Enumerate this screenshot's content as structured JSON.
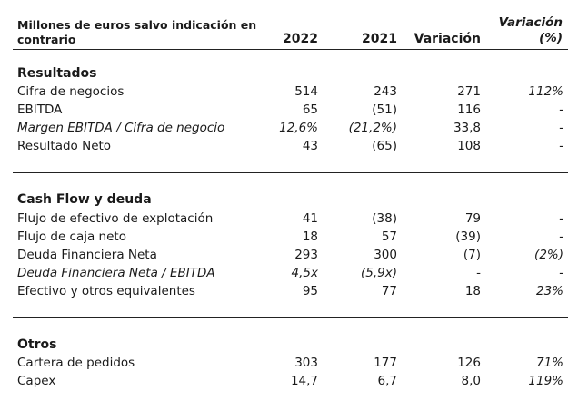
{
  "header": {
    "label_line1": "Millones de euros salvo indicación en",
    "label_line2": "contrario",
    "col_2022": "2022",
    "col_2021": "2021",
    "col_variacion": "Variación",
    "col_variacion_pct_line1": "Variación",
    "col_variacion_pct_line2": "(%)"
  },
  "sections": [
    {
      "title": "Resultados",
      "rows": [
        {
          "label": "Cifra de negocios",
          "v2022": "514",
          "v2021": "243",
          "var": "271",
          "pct": "112%",
          "italic": false
        },
        {
          "label": "EBITDA",
          "v2022": "65",
          "v2021": "(51)",
          "var": "116",
          "pct": "-",
          "italic": false
        },
        {
          "label": "Margen EBITDA / Cifra de negocio",
          "v2022": "12,6%",
          "v2021": "(21,2%)",
          "var": "33,8",
          "pct": "-",
          "italic": true
        },
        {
          "label": "Resultado Neto",
          "v2022": "43",
          "v2021": "(65)",
          "var": "108",
          "pct": "-",
          "italic": false
        }
      ]
    },
    {
      "title": "Cash Flow y deuda",
      "rows": [
        {
          "label": "Flujo de efectivo de explotación",
          "v2022": "41",
          "v2021": "(38)",
          "var": "79",
          "pct": "-",
          "italic": false
        },
        {
          "label": "Flujo de caja neto",
          "v2022": "18",
          "v2021": "57",
          "var": "(39)",
          "pct": "-",
          "italic": false
        },
        {
          "label": "Deuda Financiera Neta",
          "v2022": "293",
          "v2021": "300",
          "var": "(7)",
          "pct": "(2%)",
          "italic": false
        },
        {
          "label": "Deuda Financiera Neta / EBITDA",
          "v2022": "4,5x",
          "v2021": "(5,9x)",
          "var": "-",
          "pct": "-",
          "italic": true
        },
        {
          "label": "Efectivo y otros equivalentes",
          "v2022": "95",
          "v2021": "77",
          "var": "18",
          "pct": "23%",
          "italic": false
        }
      ]
    },
    {
      "title": "Otros",
      "rows": [
        {
          "label": "Cartera de pedidos",
          "v2022": "303",
          "v2021": "177",
          "var": "126",
          "pct": "71%",
          "italic": false
        },
        {
          "label": "Capex",
          "v2022": "14,7",
          "v2021": "6,7",
          "var": "8,0",
          "pct": "119%",
          "italic": false
        }
      ]
    }
  ]
}
